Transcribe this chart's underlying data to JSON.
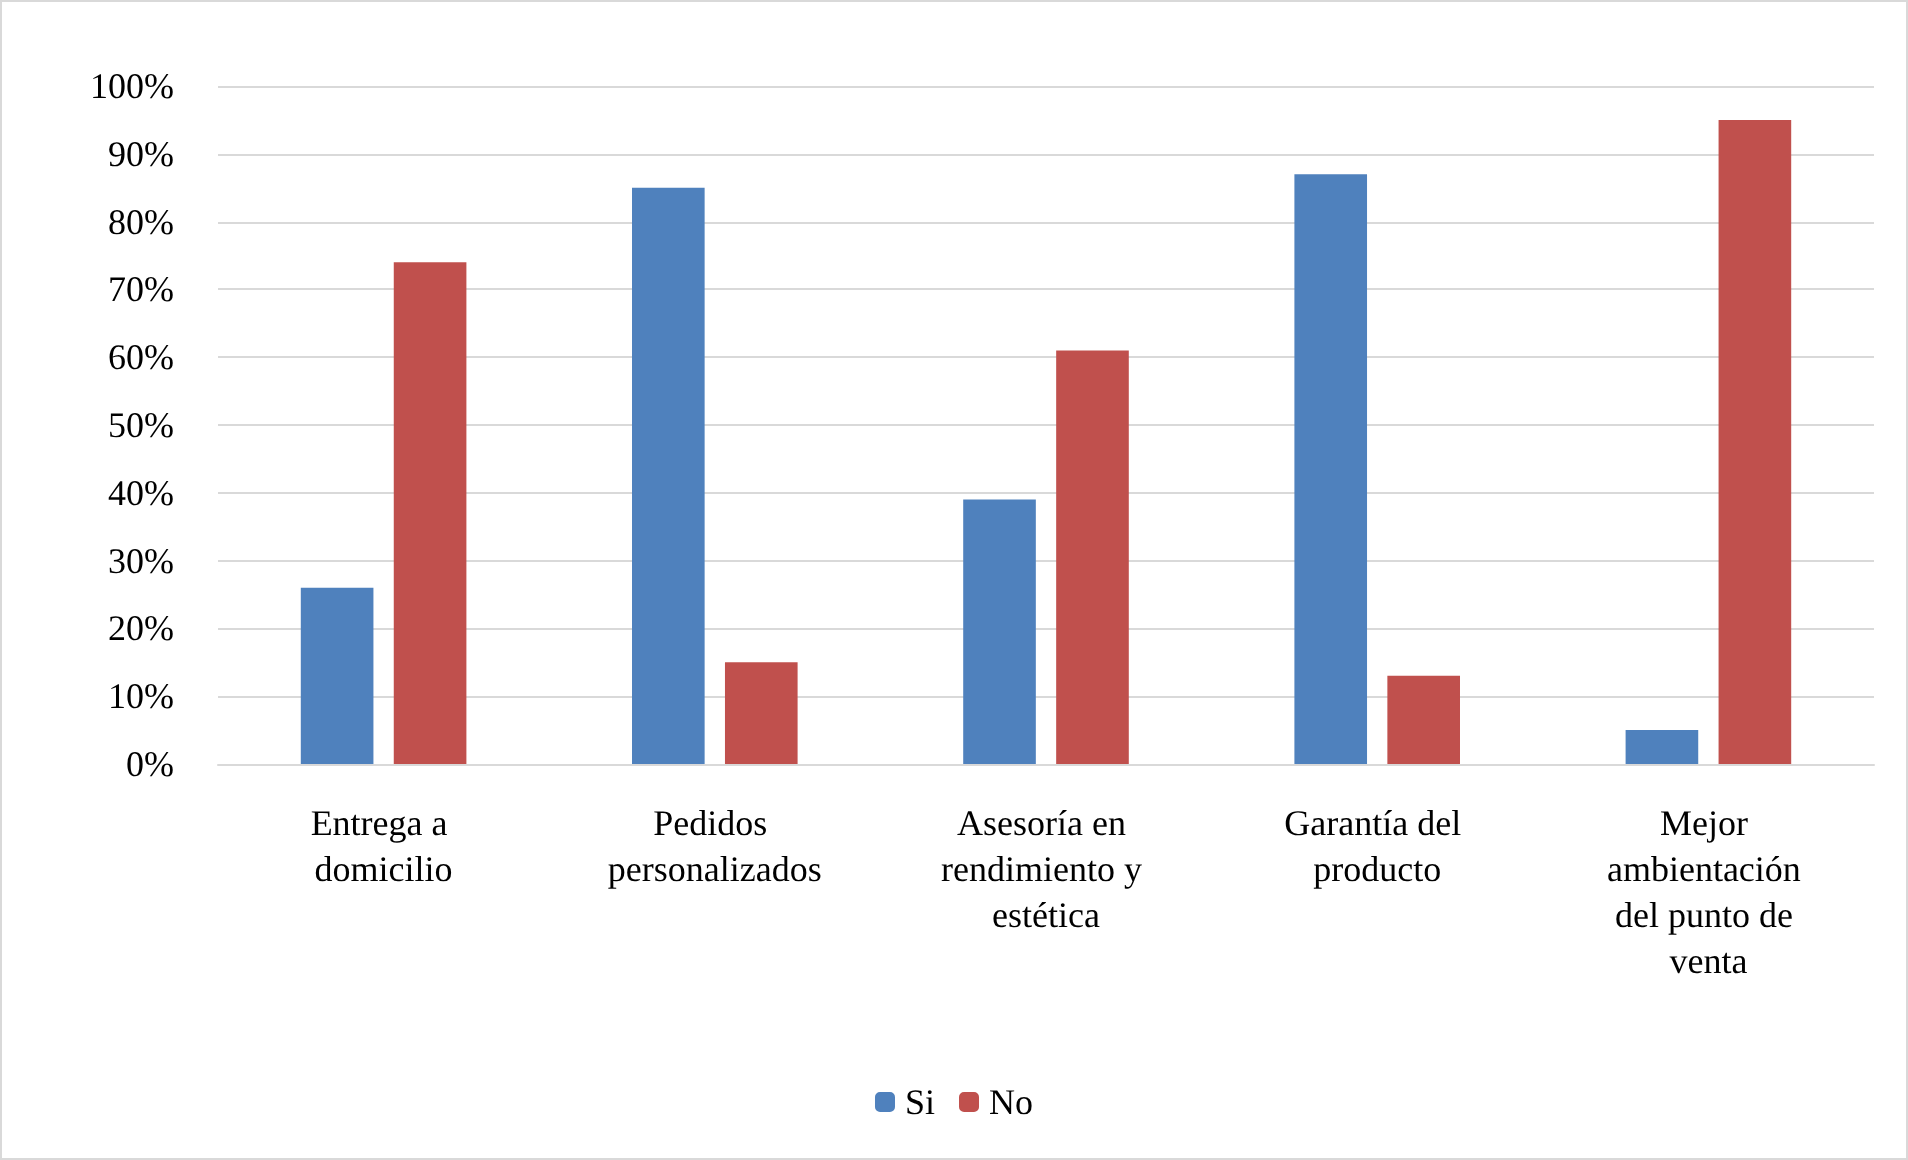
{
  "chart_data": {
    "type": "bar",
    "categories": [
      "Entrega a domicilio",
      "Pedidos personalizados",
      "Asesoría en rendimiento y estética",
      "Garantía del producto",
      "Mejor ambientación del punto de venta"
    ],
    "series": [
      {
        "name": "Si",
        "color": "#4f81bd",
        "values": [
          26,
          85,
          39,
          87,
          5
        ]
      },
      {
        "name": "No",
        "color": "#c0504d",
        "values": [
          74,
          15,
          61,
          13,
          95
        ]
      }
    ],
    "ylim": [
      0,
      100
    ],
    "yticks": [
      {
        "value": 0,
        "label": "0%"
      },
      {
        "value": 10,
        "label": "10%"
      },
      {
        "value": 20,
        "label": "20%"
      },
      {
        "value": 30,
        "label": "30%"
      },
      {
        "value": 40,
        "label": "40%"
      },
      {
        "value": 50,
        "label": "50%"
      },
      {
        "value": 60,
        "label": "60%"
      },
      {
        "value": 70,
        "label": "70%"
      },
      {
        "value": 80,
        "label": "80%"
      },
      {
        "value": 90,
        "label": "90%"
      },
      {
        "value": 100,
        "label": "100%"
      }
    ],
    "grid": "y",
    "legend": "bottom"
  }
}
